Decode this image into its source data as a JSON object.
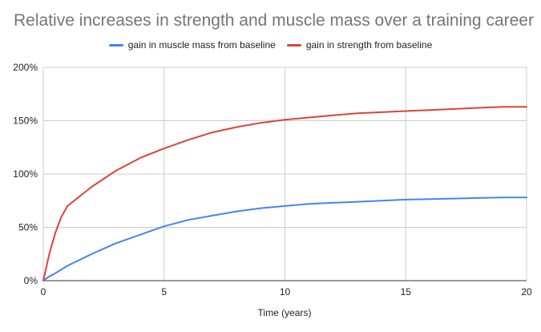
{
  "chart_data": {
    "type": "line",
    "title": "Relative increases in strength and muscle mass over a training career",
    "xlabel": "Time (years)",
    "ylabel": "",
    "xlim": [
      0,
      20
    ],
    "ylim": [
      0,
      200
    ],
    "x_ticks": [
      0,
      5,
      10,
      15,
      20
    ],
    "y_ticks": [
      0,
      50,
      100,
      150,
      200
    ],
    "y_tick_labels": [
      "0%",
      "50%",
      "100%",
      "150%",
      "200%"
    ],
    "grid": true,
    "legend_position": "top",
    "series": [
      {
        "name": "gain in muscle mass from baseline",
        "color": "#4285F4",
        "x": [
          0,
          0.25,
          0.5,
          1,
          2,
          3,
          4,
          5,
          6,
          7,
          8,
          9,
          10,
          11,
          12,
          13,
          14,
          15,
          16,
          17,
          18,
          19,
          20
        ],
        "y": [
          0,
          4,
          7,
          14,
          25,
          35,
          43,
          51,
          57,
          61,
          65,
          68,
          70,
          72,
          73,
          74,
          75,
          76,
          76.5,
          77,
          77.5,
          78,
          78
        ]
      },
      {
        "name": "gain in strength from baseline",
        "color": "#DB4437",
        "x": [
          0,
          0.25,
          0.5,
          0.75,
          1,
          2,
          3,
          4,
          5,
          6,
          7,
          8,
          9,
          10,
          11,
          12,
          13,
          14,
          15,
          16,
          17,
          18,
          19,
          20
        ],
        "y": [
          0,
          25,
          45,
          60,
          70,
          88,
          103,
          115,
          124,
          132,
          139,
          144,
          148,
          151,
          153,
          155,
          157,
          158,
          159,
          160,
          161,
          162,
          163,
          163
        ]
      }
    ]
  }
}
